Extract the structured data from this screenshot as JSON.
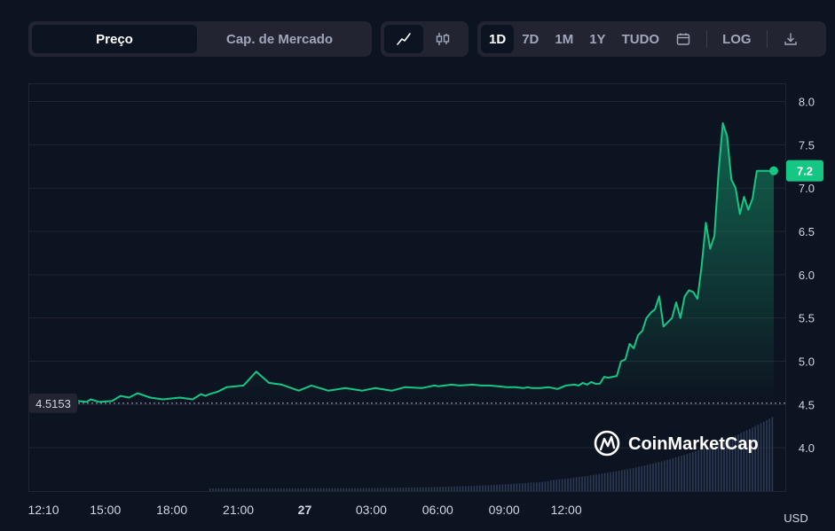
{
  "toolbar": {
    "price_label": "Preço",
    "market_cap_label": "Cap. de Mercado",
    "ranges": [
      "1D",
      "7D",
      "1M",
      "1Y",
      "TUDO"
    ],
    "log_label": "LOG"
  },
  "watermark": "CoinMarketCap",
  "colors": {
    "line": "#16c784",
    "background": "#0d1421",
    "grid": "#222531",
    "badge_text": "#ffffff"
  },
  "chart_data": {
    "type": "area",
    "currency": "USD",
    "x_labels": [
      "12:10",
      "15:00",
      "18:00",
      "21:00",
      "27",
      "03:00",
      "06:00",
      "09:00",
      "12:00"
    ],
    "y_ticks": [
      "8.0",
      "7.5",
      "7.0",
      "6.5",
      "6.0",
      "5.5",
      "5.0",
      "4.5",
      "4.0"
    ],
    "ylim": [
      3.5,
      8.2
    ],
    "reference_price": "4.5153",
    "current_price_label": "7.2",
    "x_hours_since_first_label": [
      0.0,
      0.4,
      0.6,
      1.0,
      1.6,
      2.0,
      2.4,
      2.8,
      3.4,
      4.0,
      4.8,
      5.4,
      5.8,
      6.0,
      6.2,
      6.6,
      7.0,
      7.8,
      8.4,
      9.0,
      9.6,
      10.4,
      11.0,
      11.8,
      12.6,
      13.4,
      14.0,
      14.8,
      15.4,
      16.2,
      16.8,
      17.0,
      17.6,
      18.0,
      18.6,
      19.0,
      19.4,
      19.8,
      20.2,
      20.6,
      21.0,
      21.2,
      21.4,
      21.8,
      22.2,
      22.6,
      23.0,
      23.4,
      23.6,
      23.8,
      24.0,
      24.2,
      24.4,
      24.6,
      24.8,
      25.0,
      25.2,
      25.4,
      25.6,
      25.8,
      26.0,
      26.2,
      26.4,
      26.6,
      26.8,
      27.0,
      27.2,
      27.4,
      27.6,
      27.8,
      28.0,
      28.2,
      28.4,
      28.6,
      28.8,
      29.0,
      29.2,
      29.4,
      29.6,
      29.8,
      30.0,
      30.2,
      30.4,
      30.6,
      30.8,
      31.0,
      31.2,
      31.4,
      31.6,
      31.8,
      32.0,
      32.2,
      32.4,
      32.6,
      32.8
    ],
    "prices": [
      4.54,
      4.53,
      4.56,
      4.53,
      4.54,
      4.6,
      4.58,
      4.63,
      4.58,
      4.56,
      4.58,
      4.56,
      4.62,
      4.6,
      4.62,
      4.65,
      4.7,
      4.72,
      4.88,
      4.75,
      4.73,
      4.66,
      4.72,
      4.66,
      4.69,
      4.66,
      4.69,
      4.66,
      4.7,
      4.69,
      4.72,
      4.71,
      4.73,
      4.72,
      4.73,
      4.72,
      4.72,
      4.71,
      4.7,
      4.7,
      4.69,
      4.7,
      4.69,
      4.69,
      4.7,
      4.68,
      4.72,
      4.73,
      4.72,
      4.75,
      4.73,
      4.76,
      4.74,
      4.74,
      4.82,
      4.81,
      4.82,
      4.83,
      5.0,
      5.02,
      5.2,
      5.15,
      5.3,
      5.35,
      5.5,
      5.56,
      5.6,
      5.75,
      5.4,
      5.45,
      5.5,
      5.68,
      5.5,
      5.75,
      5.82,
      5.8,
      5.72,
      6.1,
      6.6,
      6.3,
      6.45,
      7.2,
      7.75,
      7.6,
      7.1,
      7.0,
      6.7,
      6.9,
      6.75,
      6.88,
      7.2,
      7.2,
      7.2,
      7.2,
      7.2
    ],
    "volume_note": "histogram bars shown at bottom, no scale printed"
  }
}
